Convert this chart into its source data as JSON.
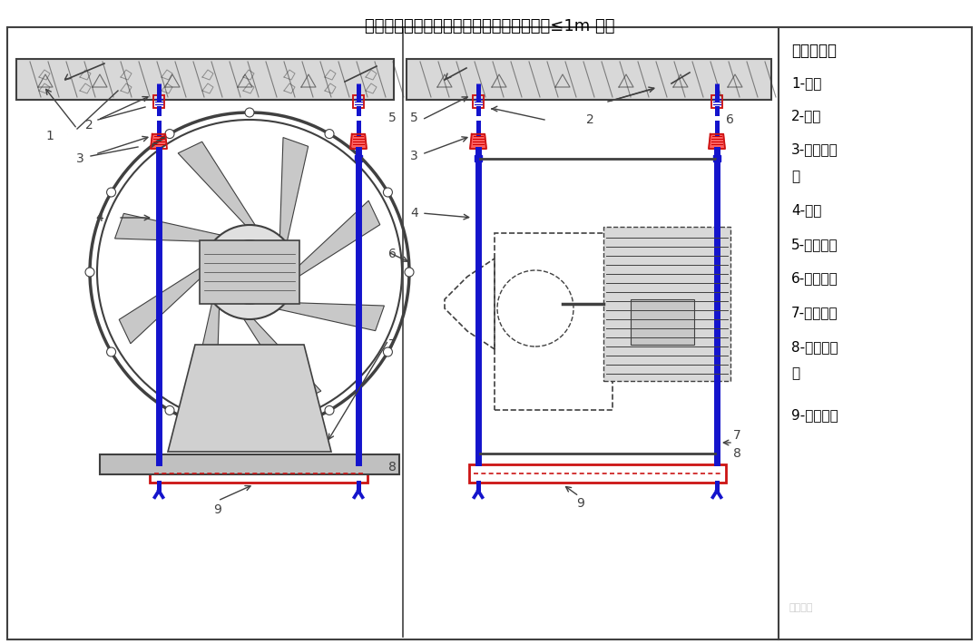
{
  "title": "轴流风机的吊装示意图（风机顶距顶棚距离≤1m 时）",
  "bg_color": "#ffffff",
  "line_color": "#404040",
  "blue_color": "#1414cc",
  "red_color": "#cc1414",
  "legend": [
    [
      "符号说明：",
      true
    ],
    [
      "1-楼板",
      false
    ],
    [
      "2-槽钢",
      false
    ],
    [
      "3-弹簧减振",
      false
    ],
    [
      "器",
      false
    ],
    [
      "4-吊杆",
      false
    ],
    [
      "5-膨胀螺栓",
      false
    ],
    [
      "6-离心风机",
      false
    ],
    [
      "7-风机底座",
      false
    ],
    [
      "8-橡胶减振",
      false
    ],
    [
      "垫",
      false
    ],
    [
      "9-槽钢槽担",
      false
    ]
  ]
}
